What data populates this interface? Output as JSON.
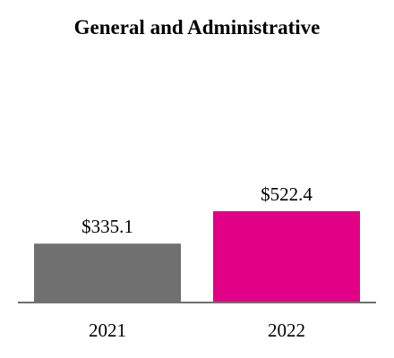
{
  "chart_data": {
    "type": "bar",
    "title": "General and Administrative",
    "categories": [
      "2021",
      "2022"
    ],
    "values": [
      335.1,
      522.4
    ],
    "value_labels": [
      "$335.1",
      "$522.4"
    ],
    "bar_colors": [
      "#707070",
      "#E20086"
    ],
    "axis_color": "#707070",
    "xlabel": "",
    "ylabel": "",
    "ylim": [
      0,
      522.4
    ],
    "grid": false,
    "legend": "none"
  }
}
